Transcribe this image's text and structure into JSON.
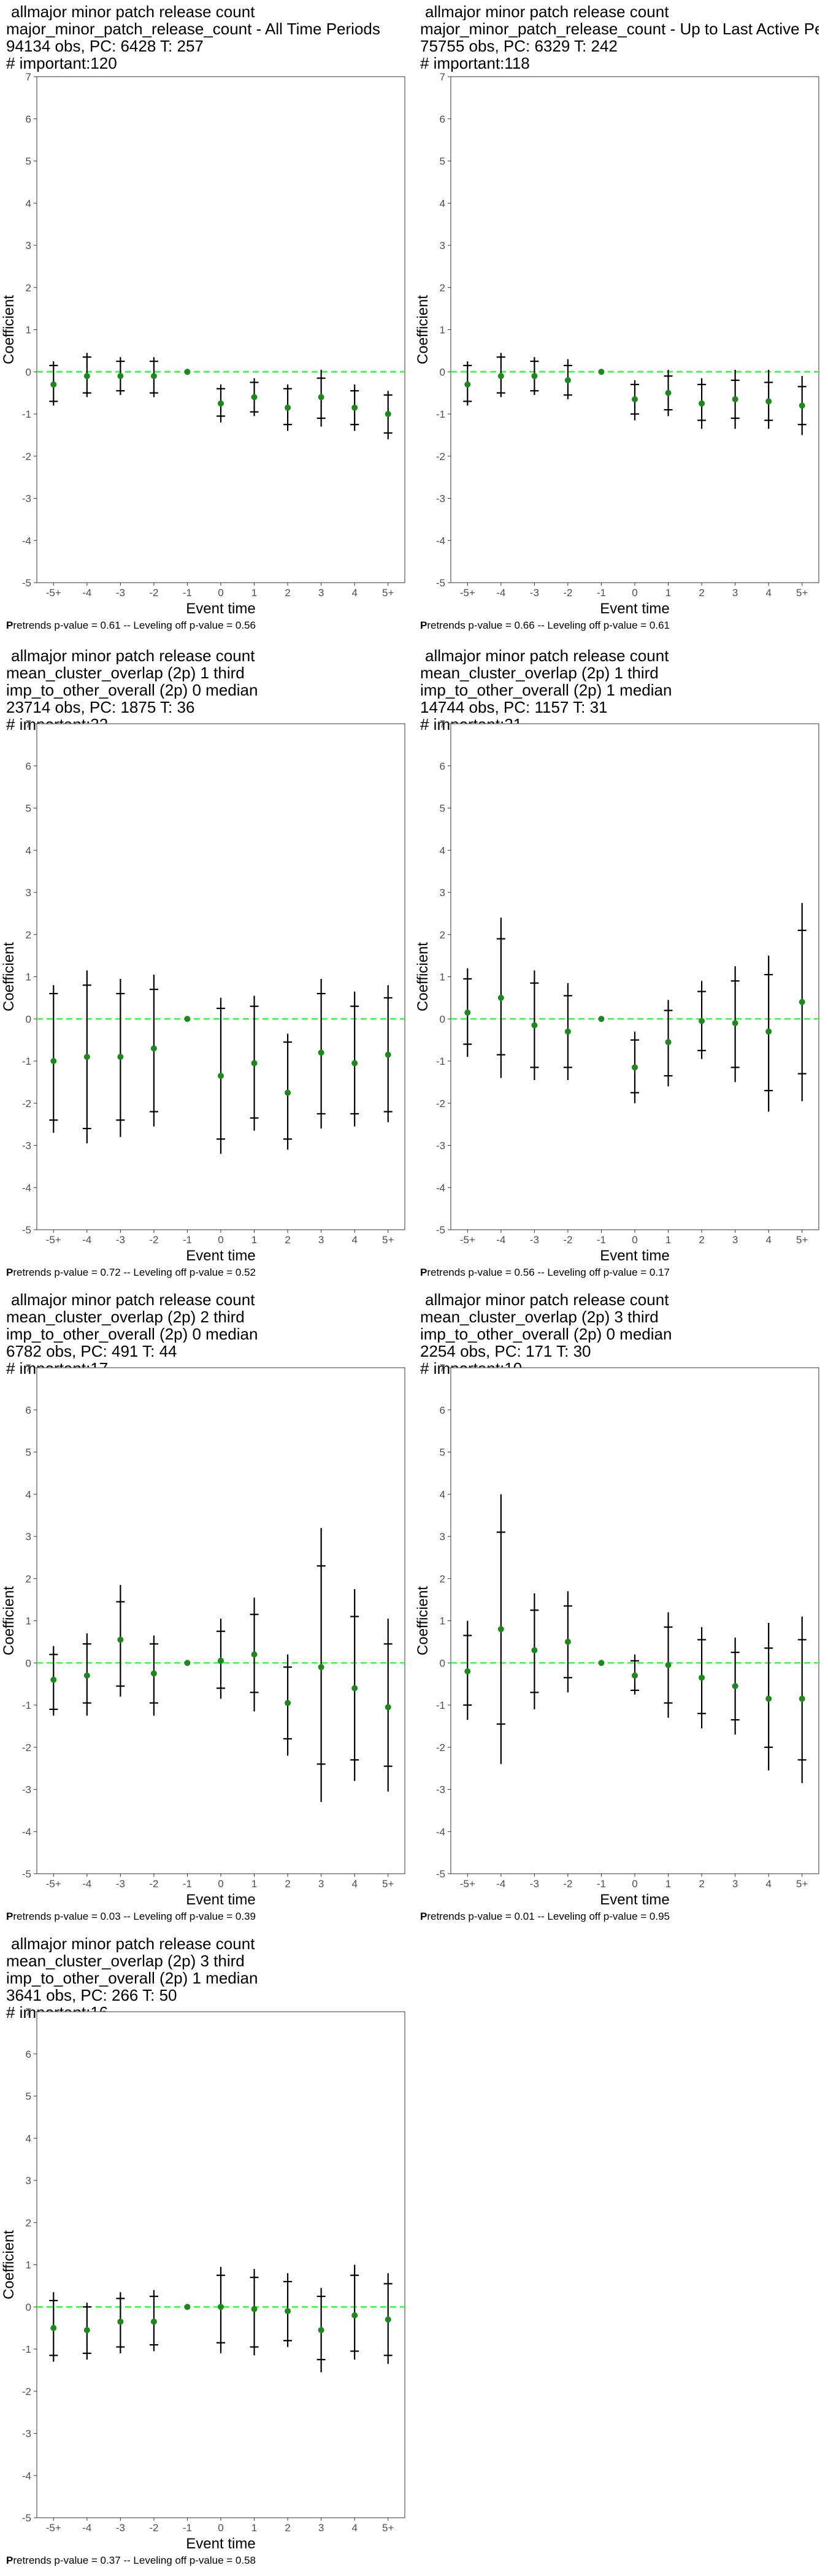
{
  "layout": {
    "columns": 2
  },
  "colors": {
    "zero_line": "#33ff33",
    "point": "#1a8a1a",
    "bar": "#000000",
    "frame": "#555555"
  },
  "chart_data": [
    {
      "type": "scatter",
      "title_lines": [
        "allmajor minor patch release count",
        "major_minor_patch_release_count - All Time Periods",
        "94134 obs, PC: 6428 T: 257",
        "# important:120"
      ],
      "xlabel": "Event time",
      "ylabel": "Coefficient",
      "categories": [
        "-5+",
        "-4",
        "-3",
        "-2",
        "-1",
        "0",
        "1",
        "2",
        "3",
        "4",
        "5+"
      ],
      "ylim": [
        -5,
        7
      ],
      "yticks": [
        -5,
        -4,
        -3,
        -2,
        -1,
        0,
        1,
        2,
        3,
        4,
        5,
        6,
        7
      ],
      "zero_line": 0,
      "estimate": [
        -0.3,
        -0.1,
        -0.1,
        -0.1,
        0,
        -0.75,
        -0.6,
        -0.85,
        -0.6,
        -0.85,
        -1.0
      ],
      "ci90": [
        [
          -0.7,
          0.15
        ],
        [
          -0.5,
          0.35
        ],
        [
          -0.45,
          0.25
        ],
        [
          -0.5,
          0.25
        ],
        [
          0,
          0
        ],
        [
          -1.05,
          -0.4
        ],
        [
          -0.95,
          -0.25
        ],
        [
          -1.25,
          -0.4
        ],
        [
          -1.1,
          -0.15
        ],
        [
          -1.25,
          -0.45
        ],
        [
          -1.45,
          -0.55
        ]
      ],
      "ci95": [
        [
          -0.8,
          0.25
        ],
        [
          -0.6,
          0.45
        ],
        [
          -0.55,
          0.35
        ],
        [
          -0.6,
          0.35
        ],
        [
          0,
          0
        ],
        [
          -1.2,
          -0.3
        ],
        [
          -1.05,
          -0.15
        ],
        [
          -1.4,
          -0.3
        ],
        [
          -1.3,
          0.05
        ],
        [
          -1.4,
          -0.3
        ],
        [
          -1.6,
          -0.45
        ]
      ],
      "footer_bold": "P",
      "footer_rest": "retrends p-value = 0.61 -- Leveling off p-value = 0.56"
    },
    {
      "type": "scatter",
      "title_lines": [
        "allmajor minor patch release count",
        "major_minor_patch_release_count - Up to Last Active Period",
        "75755 obs, PC: 6329 T: 242",
        "# important:118"
      ],
      "xlabel": "Event time",
      "ylabel": "Coefficient",
      "categories": [
        "-5+",
        "-4",
        "-3",
        "-2",
        "-1",
        "0",
        "1",
        "2",
        "3",
        "4",
        "5+"
      ],
      "ylim": [
        -5,
        7
      ],
      "yticks": [
        -5,
        -4,
        -3,
        -2,
        -1,
        0,
        1,
        2,
        3,
        4,
        5,
        6,
        7
      ],
      "zero_line": 0,
      "estimate": [
        -0.3,
        -0.1,
        -0.1,
        -0.2,
        0,
        -0.65,
        -0.5,
        -0.75,
        -0.65,
        -0.7,
        -0.8
      ],
      "ci90": [
        [
          -0.7,
          0.15
        ],
        [
          -0.5,
          0.35
        ],
        [
          -0.45,
          0.25
        ],
        [
          -0.55,
          0.15
        ],
        [
          0,
          0
        ],
        [
          -1.0,
          -0.3
        ],
        [
          -0.9,
          -0.1
        ],
        [
          -1.15,
          -0.3
        ],
        [
          -1.1,
          -0.2
        ],
        [
          -1.15,
          -0.25
        ],
        [
          -1.25,
          -0.35
        ]
      ],
      "ci95": [
        [
          -0.8,
          0.25
        ],
        [
          -0.6,
          0.45
        ],
        [
          -0.55,
          0.35
        ],
        [
          -0.65,
          0.3
        ],
        [
          0,
          0
        ],
        [
          -1.15,
          -0.2
        ],
        [
          -1.05,
          0.05
        ],
        [
          -1.35,
          -0.15
        ],
        [
          -1.35,
          0.05
        ],
        [
          -1.35,
          0.05
        ],
        [
          -1.5,
          -0.1
        ]
      ],
      "footer_bold": "P",
      "footer_rest": "retrends p-value = 0.66 -- Leveling off p-value = 0.61"
    },
    {
      "type": "scatter",
      "title_lines": [
        "allmajor minor patch release count",
        "mean_cluster_overlap (2p) 1 third",
        "imp_to_other_overall (2p) 0 median",
        "23714 obs, PC: 1875 T: 36",
        "# important:32"
      ],
      "xlabel": "Event time",
      "ylabel": "Coefficient",
      "categories": [
        "-5+",
        "-4",
        "-3",
        "-2",
        "-1",
        "0",
        "1",
        "2",
        "3",
        "4",
        "5+"
      ],
      "ylim": [
        -5,
        7
      ],
      "yticks": [
        -5,
        -4,
        -3,
        -2,
        -1,
        0,
        1,
        2,
        3,
        4,
        5,
        6,
        7
      ],
      "zero_line": 0,
      "estimate": [
        -1.0,
        -0.9,
        -0.9,
        -0.7,
        0,
        -1.35,
        -1.05,
        -1.75,
        -0.8,
        -1.05,
        -0.85
      ],
      "ci90": [
        [
          -2.4,
          0.6
        ],
        [
          -2.6,
          0.8
        ],
        [
          -2.4,
          0.6
        ],
        [
          -2.2,
          0.7
        ],
        [
          0,
          0
        ],
        [
          -2.85,
          0.25
        ],
        [
          -2.35,
          0.3
        ],
        [
          -2.85,
          -0.55
        ],
        [
          -2.25,
          0.6
        ],
        [
          -2.25,
          0.3
        ],
        [
          -2.2,
          0.5
        ]
      ],
      "ci95": [
        [
          -2.7,
          0.8
        ],
        [
          -2.95,
          1.15
        ],
        [
          -2.8,
          0.95
        ],
        [
          -2.55,
          1.05
        ],
        [
          0,
          0
        ],
        [
          -3.2,
          0.5
        ],
        [
          -2.65,
          0.55
        ],
        [
          -3.1,
          -0.35
        ],
        [
          -2.6,
          0.95
        ],
        [
          -2.55,
          0.65
        ],
        [
          -2.45,
          0.8
        ]
      ],
      "footer_bold": "P",
      "footer_rest": "retrends p-value = 0.72 -- Leveling off p-value = 0.52"
    },
    {
      "type": "scatter",
      "title_lines": [
        "allmajor minor patch release count",
        "mean_cluster_overlap (2p) 1 third",
        "imp_to_other_overall (2p) 1 median",
        "14744 obs, PC: 1157 T: 31",
        "# important:21"
      ],
      "xlabel": "Event time",
      "ylabel": "Coefficient",
      "categories": [
        "-5+",
        "-4",
        "-3",
        "-2",
        "-1",
        "0",
        "1",
        "2",
        "3",
        "4",
        "5+"
      ],
      "ylim": [
        -5,
        7
      ],
      "yticks": [
        -5,
        -4,
        -3,
        -2,
        -1,
        0,
        1,
        2,
        3,
        4,
        5,
        6,
        7
      ],
      "zero_line": 0,
      "estimate": [
        0.15,
        0.5,
        -0.15,
        -0.3,
        0,
        -1.15,
        -0.55,
        -0.05,
        -0.1,
        -0.3,
        0.4
      ],
      "ci90": [
        [
          -0.6,
          0.95
        ],
        [
          -0.85,
          1.9
        ],
        [
          -1.15,
          0.85
        ],
        [
          -1.15,
          0.55
        ],
        [
          0,
          0
        ],
        [
          -1.75,
          -0.5
        ],
        [
          -1.35,
          0.2
        ],
        [
          -0.75,
          0.65
        ],
        [
          -1.15,
          0.9
        ],
        [
          -1.7,
          1.05
        ],
        [
          -1.3,
          2.1
        ]
      ],
      "ci95": [
        [
          -0.9,
          1.2
        ],
        [
          -1.4,
          2.4
        ],
        [
          -1.45,
          1.15
        ],
        [
          -1.45,
          0.85
        ],
        [
          0,
          0
        ],
        [
          -2.0,
          -0.3
        ],
        [
          -1.6,
          0.45
        ],
        [
          -0.95,
          0.9
        ],
        [
          -1.5,
          1.25
        ],
        [
          -2.2,
          1.5
        ],
        [
          -1.95,
          2.75
        ]
      ],
      "footer_bold": "P",
      "footer_rest": "retrends p-value = 0.56 -- Leveling off p-value = 0.17"
    },
    {
      "type": "scatter",
      "title_lines": [
        "allmajor minor patch release count",
        "mean_cluster_overlap (2p) 2 third",
        "imp_to_other_overall (2p) 0 median",
        "6782 obs, PC: 491 T: 44",
        "# important:17"
      ],
      "xlabel": "Event time",
      "ylabel": "Coefficient",
      "categories": [
        "-5+",
        "-4",
        "-3",
        "-2",
        "-1",
        "0",
        "1",
        "2",
        "3",
        "4",
        "5+"
      ],
      "ylim": [
        -5,
        7
      ],
      "yticks": [
        -5,
        -4,
        -3,
        -2,
        -1,
        0,
        1,
        2,
        3,
        4,
        5,
        6,
        7
      ],
      "zero_line": 0,
      "estimate": [
        -0.4,
        -0.3,
        0.55,
        -0.25,
        0,
        0.05,
        0.2,
        -0.95,
        -0.1,
        -0.6,
        -1.05
      ],
      "ci90": [
        [
          -1.1,
          0.2
        ],
        [
          -0.95,
          0.45
        ],
        [
          -0.55,
          1.45
        ],
        [
          -0.95,
          0.45
        ],
        [
          0,
          0
        ],
        [
          -0.6,
          0.75
        ],
        [
          -0.7,
          1.15
        ],
        [
          -1.8,
          -0.1
        ],
        [
          -2.4,
          2.3
        ],
        [
          -2.3,
          1.1
        ],
        [
          -2.45,
          0.45
        ]
      ],
      "ci95": [
        [
          -1.25,
          0.4
        ],
        [
          -1.25,
          0.7
        ],
        [
          -0.8,
          1.85
        ],
        [
          -1.25,
          0.65
        ],
        [
          0,
          0
        ],
        [
          -0.85,
          1.05
        ],
        [
          -1.15,
          1.55
        ],
        [
          -2.2,
          0.2
        ],
        [
          -3.3,
          3.2
        ],
        [
          -2.8,
          1.75
        ],
        [
          -3.05,
          1.05
        ]
      ],
      "footer_bold": "P",
      "footer_rest": "retrends p-value = 0.03 -- Leveling off p-value = 0.39"
    },
    {
      "type": "scatter",
      "title_lines": [
        "allmajor minor patch release count",
        "mean_cluster_overlap (2p) 3 third",
        "imp_to_other_overall (2p) 0 median",
        "2254 obs, PC: 171 T: 30",
        "# important:10"
      ],
      "xlabel": "Event time",
      "ylabel": "Coefficient",
      "categories": [
        "-5+",
        "-4",
        "-3",
        "-2",
        "-1",
        "0",
        "1",
        "2",
        "3",
        "4",
        "5+"
      ],
      "ylim": [
        -5,
        7
      ],
      "yticks": [
        -5,
        -4,
        -3,
        -2,
        -1,
        0,
        1,
        2,
        3,
        4,
        5,
        6,
        7
      ],
      "zero_line": 0,
      "estimate": [
        -0.2,
        0.8,
        0.3,
        0.5,
        0,
        -0.3,
        -0.05,
        -0.35,
        -0.55,
        -0.85,
        -0.85
      ],
      "ci90": [
        [
          -1.0,
          0.65
        ],
        [
          -1.45,
          3.1
        ],
        [
          -0.7,
          1.25
        ],
        [
          -0.35,
          1.35
        ],
        [
          0,
          0
        ],
        [
          -0.65,
          0.05
        ],
        [
          -0.95,
          0.85
        ],
        [
          -1.2,
          0.55
        ],
        [
          -1.35,
          0.25
        ],
        [
          -2.0,
          0.35
        ],
        [
          -2.3,
          0.55
        ]
      ],
      "ci95": [
        [
          -1.35,
          1.0
        ],
        [
          -2.4,
          4.0
        ],
        [
          -1.1,
          1.65
        ],
        [
          -0.7,
          1.7
        ],
        [
          0,
          0
        ],
        [
          -0.75,
          0.2
        ],
        [
          -1.3,
          1.2
        ],
        [
          -1.55,
          0.85
        ],
        [
          -1.7,
          0.6
        ],
        [
          -2.55,
          0.95
        ],
        [
          -2.85,
          1.1
        ]
      ],
      "footer_bold": "P",
      "footer_rest": "retrends p-value = 0.01 -- Leveling off p-value = 0.95"
    },
    {
      "type": "scatter",
      "title_lines": [
        "allmajor minor patch release count",
        "mean_cluster_overlap (2p) 3 third",
        "imp_to_other_overall (2p) 1 median",
        "3641 obs, PC: 266 T: 50",
        "# important:16"
      ],
      "xlabel": "Event time",
      "ylabel": "Coefficient",
      "categories": [
        "-5+",
        "-4",
        "-3",
        "-2",
        "-1",
        "0",
        "1",
        "2",
        "3",
        "4",
        "5+"
      ],
      "ylim": [
        -5,
        7
      ],
      "yticks": [
        -5,
        -4,
        -3,
        -2,
        -1,
        0,
        1,
        2,
        3,
        4,
        5,
        6,
        7
      ],
      "zero_line": 0,
      "estimate": [
        -0.5,
        -0.55,
        -0.35,
        -0.35,
        0,
        0.0,
        -0.05,
        -0.1,
        -0.55,
        -0.2,
        -0.3
      ],
      "ci90": [
        [
          -1.15,
          0.15
        ],
        [
          -1.1,
          0.0
        ],
        [
          -0.95,
          0.2
        ],
        [
          -0.9,
          0.25
        ],
        [
          0,
          0
        ],
        [
          -0.85,
          0.75
        ],
        [
          -0.95,
          0.7
        ],
        [
          -0.8,
          0.6
        ],
        [
          -1.25,
          0.25
        ],
        [
          -1.05,
          0.75
        ],
        [
          -1.15,
          0.55
        ]
      ],
      "ci95": [
        [
          -1.3,
          0.35
        ],
        [
          -1.25,
          0.1
        ],
        [
          -1.1,
          0.35
        ],
        [
          -1.05,
          0.4
        ],
        [
          0,
          0
        ],
        [
          -1.1,
          0.95
        ],
        [
          -1.15,
          0.9
        ],
        [
          -0.95,
          0.8
        ],
        [
          -1.55,
          0.45
        ],
        [
          -1.25,
          1.0
        ],
        [
          -1.35,
          0.8
        ]
      ],
      "footer_bold": "P",
      "footer_rest": "retrends p-value = 0.37 -- Leveling off p-value = 0.58"
    }
  ]
}
